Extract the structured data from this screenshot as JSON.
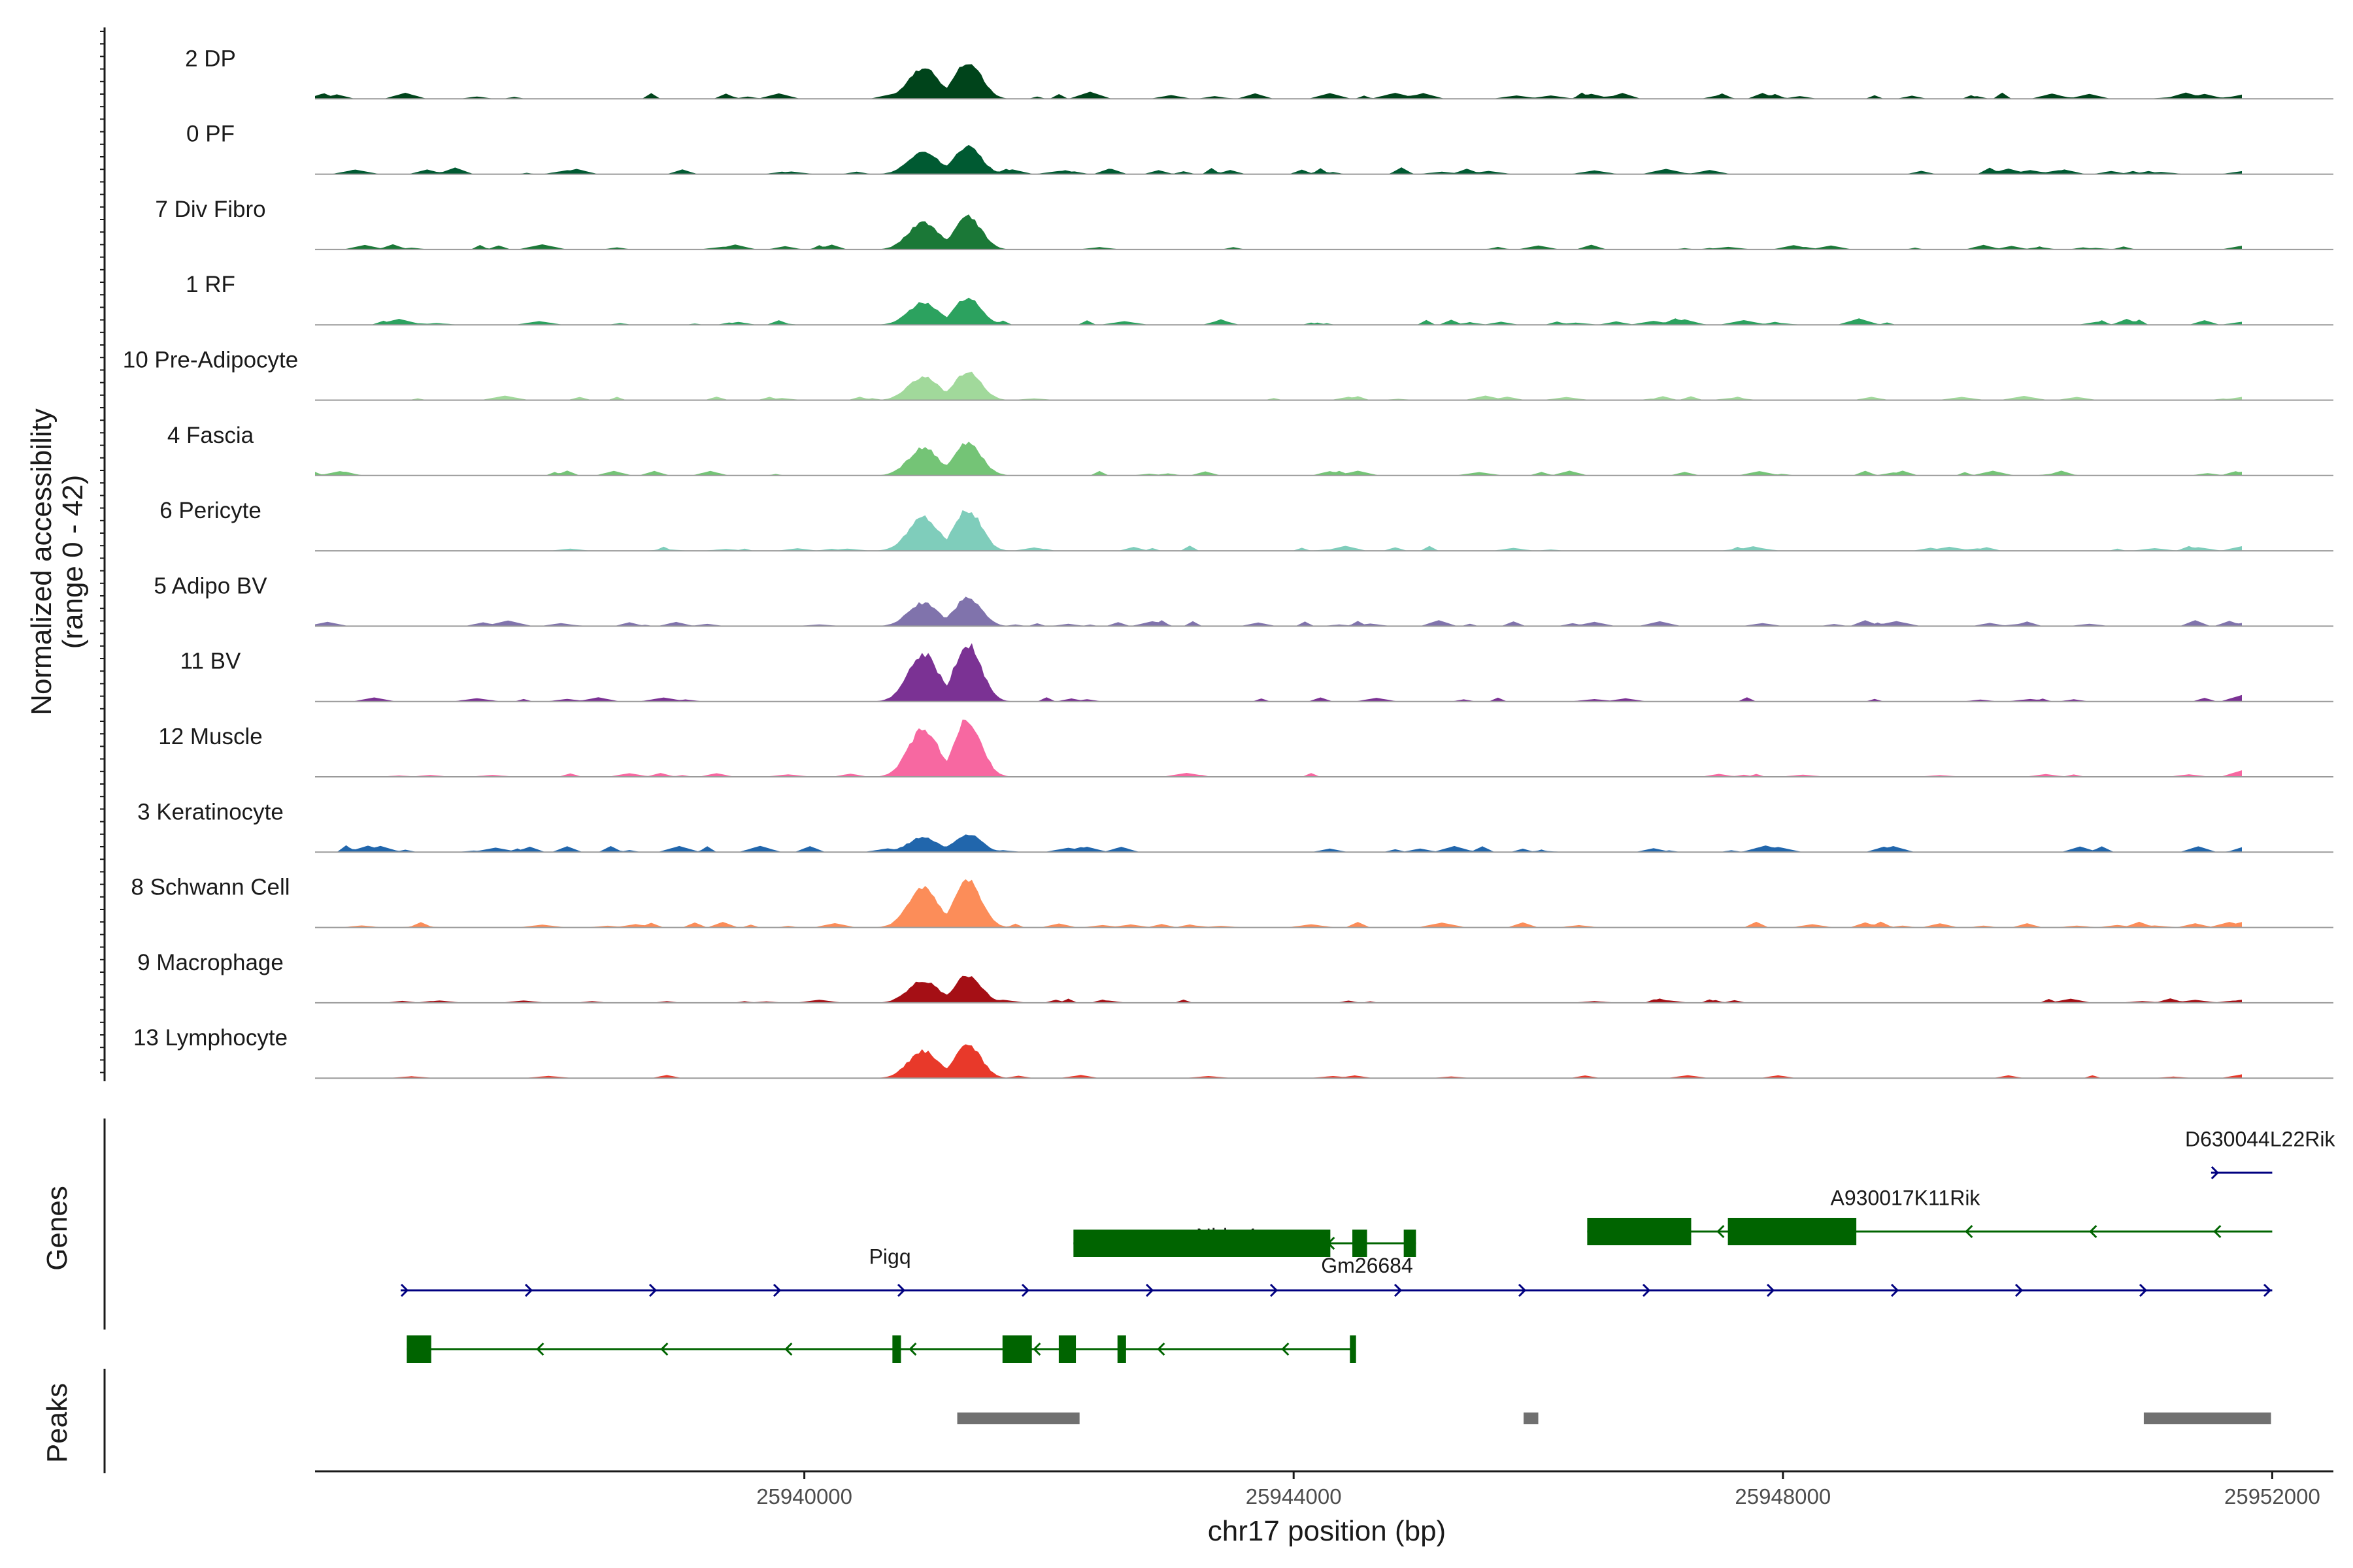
{
  "chart_data": {
    "type": "area",
    "title": "",
    "chromosome": "chr17",
    "xlabel": "chr17 position (bp)",
    "ylabel": "Normalized accessibility",
    "ylabel_range": "(range 0 - 42)",
    "ylim": [
      0,
      42
    ],
    "xlim": [
      25936000,
      25952500
    ],
    "x_ticks": [
      25940000,
      25944000,
      25948000,
      25952000
    ],
    "x_tick_labels": [
      "25940000",
      "25944000",
      "25948000",
      "25952000"
    ],
    "panels": {
      "genes_title": "Genes",
      "peaks_title": "Peaks"
    },
    "main_peaks": [
      {
        "center": 25941600,
        "width": 170
      },
      {
        "center": 25941950,
        "width": 150
      }
    ],
    "tracks": [
      {
        "name": "2 DP",
        "color": "#00441b",
        "scale": 0.62,
        "density": 0.9,
        "seed": 3
      },
      {
        "name": "0 PF",
        "color": "#005a32",
        "scale": 0.45,
        "density": 0.85,
        "seed": 7
      },
      {
        "name": "7 Div Fibro",
        "color": "#1b7837",
        "scale": 0.55,
        "density": 0.6,
        "seed": 11
      },
      {
        "name": "1 RF",
        "color": "#2ca25f",
        "scale": 0.45,
        "density": 0.8,
        "seed": 13
      },
      {
        "name": "10 Pre-Adipocyte",
        "color": "#a1d99b",
        "scale": 0.48,
        "density": 0.5,
        "seed": 17
      },
      {
        "name": "4 Fascia",
        "color": "#74c476",
        "scale": 0.55,
        "density": 0.6,
        "seed": 19
      },
      {
        "name": "6 Pericyte",
        "color": "#7fcdbb",
        "scale": 0.68,
        "density": 0.6,
        "seed": 23
      },
      {
        "name": "5 Adipo BV",
        "color": "#8073ac",
        "scale": 0.47,
        "density": 0.75,
        "seed": 29
      },
      {
        "name": "11 BV",
        "color": "#7b3294",
        "scale": 0.95,
        "density": 0.45,
        "seed": 31
      },
      {
        "name": "12 Muscle",
        "color": "#f768a1",
        "scale": 0.95,
        "density": 0.4,
        "seed": 37
      },
      {
        "name": "3 Keratinocyte",
        "color": "#2166ac",
        "scale": 0.3,
        "density": 0.85,
        "seed": 41
      },
      {
        "name": "8 Schwann Cell",
        "color": "#fc8d59",
        "scale": 0.8,
        "density": 0.7,
        "seed": 43
      },
      {
        "name": "9 Macrophage",
        "color": "#a50f15",
        "scale": 0.45,
        "density": 0.5,
        "seed": 47
      },
      {
        "name": "13 Lymphocyte",
        "color": "#e8392a",
        "scale": 0.55,
        "density": 0.3,
        "seed": 53
      }
    ],
    "genes": [
      {
        "name": "Pigq",
        "strand": "+",
        "color": "#000080",
        "start": 25936700,
        "end": 25952000,
        "row": 1,
        "exons": [],
        "label_x": 25940700
      },
      {
        "name": "Nhlrc4",
        "strand": "-",
        "color": "#006400",
        "start": 25936750,
        "end": 25944500,
        "row": 2,
        "exons": [
          [
            25936750,
            25936950
          ],
          [
            25940720,
            25940790
          ],
          [
            25941620,
            25941860
          ],
          [
            25942080,
            25942220
          ],
          [
            25942560,
            25942630
          ],
          [
            25944460,
            25944510
          ]
        ],
        "label_x": 25943450,
        "label_row": 0.2
      },
      {
        "name": "Gm26684",
        "strand": "-",
        "color": "#006400",
        "start": 25942200,
        "end": 25945000,
        "row": 0.2,
        "exons": [
          [
            25942200,
            25944300
          ],
          [
            25944480,
            25944600
          ],
          [
            25944900,
            25945000
          ]
        ],
        "label_x": 25944600,
        "label_row": 0.7
      },
      {
        "name": "A930017K11Rik",
        "strand": "-",
        "color": "#006400",
        "start": 25946400,
        "end": 25952000,
        "row": 0,
        "exons": [
          [
            25946400,
            25947250
          ],
          [
            25947550,
            25948600
          ]
        ],
        "label_x": 25949000,
        "label_row": -0.45
      },
      {
        "name": "D630044L22Rik",
        "strand": "+",
        "color": "#000080",
        "start": 25951500,
        "end": 25952000,
        "row": -1,
        "exons": [],
        "label_x": 25951900,
        "label_row": -1.45
      }
    ],
    "peaks": [
      {
        "start": 25941250,
        "end": 25942250
      },
      {
        "start": 25945880,
        "end": 25946000
      },
      {
        "start": 25950950,
        "end": 25951990
      }
    ]
  }
}
